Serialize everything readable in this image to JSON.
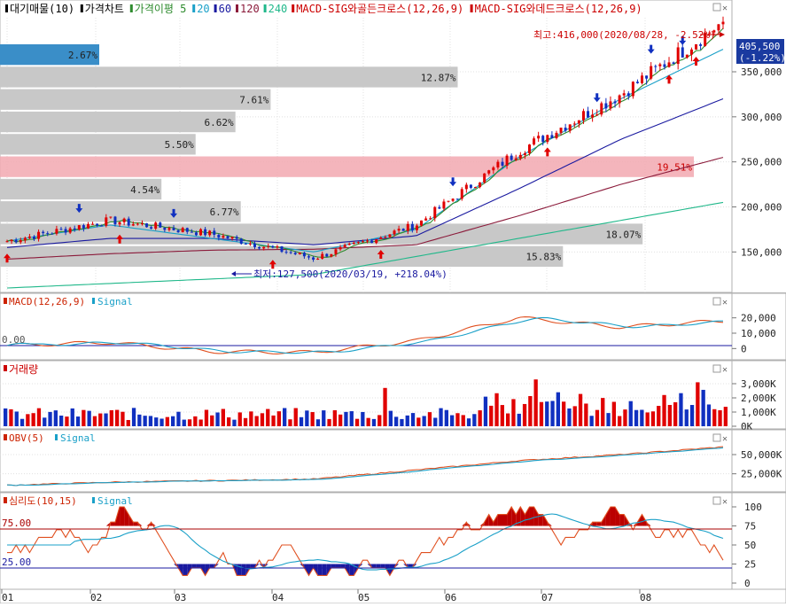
{
  "legend": {
    "items": [
      {
        "label": "대기매물(10)",
        "color": "#000000"
      },
      {
        "label": "가격차트",
        "color": "#000000"
      },
      {
        "label": "가격이평 5",
        "color": "#2e8b2e"
      },
      {
        "label": "20",
        "color": "#1aa0c8"
      },
      {
        "label": "60",
        "color": "#1a1aa0"
      },
      {
        "label": "120",
        "color": "#8b1a3a"
      },
      {
        "label": "240",
        "color": "#20b88a"
      },
      {
        "label": "MACD-SIG와골든크로스(12,26,9)",
        "color": "#cc0000"
      },
      {
        "label": "MACD-SIG와데드크로스(12,26,9)",
        "color": "#cc0000"
      }
    ]
  },
  "price_panel": {
    "max_label": "최고:416,000(2020/08/28, -2.52%)",
    "min_label": "최저:127,500(2020/03/19, +218.04%)",
    "current_price": "405,500",
    "current_change": "(-1.22%)",
    "y_ticks": [
      "350,000",
      "300,000",
      "250,000",
      "200,000",
      "150,000"
    ]
  },
  "volume_profile": [
    {
      "pct": "2.67%",
      "highlight": "blue"
    },
    {
      "pct": "12.87%",
      "highlight": "none"
    },
    {
      "pct": "7.61%",
      "highlight": "none"
    },
    {
      "pct": "6.62%",
      "highlight": "none"
    },
    {
      "pct": "5.50%",
      "highlight": "none"
    },
    {
      "pct": "19.51%",
      "highlight": "red"
    },
    {
      "pct": "4.54%",
      "highlight": "none"
    },
    {
      "pct": "6.77%",
      "highlight": "none"
    },
    {
      "pct": "18.07%",
      "highlight": "none"
    },
    {
      "pct": "15.83%",
      "highlight": "none"
    }
  ],
  "macd_panel": {
    "title_a": "MACD(12,26,9)",
    "title_b": "Signal",
    "zero_label": "0.00",
    "y_ticks": [
      "20,000",
      "10,000",
      "0"
    ]
  },
  "volume_panel": {
    "title": "거래량",
    "y_ticks": [
      "3,000K",
      "2,000K",
      "1,000K",
      "0K"
    ]
  },
  "obv_panel": {
    "title_a": "OBV(5)",
    "title_b": "Signal",
    "y_ticks": [
      "50,000K",
      "25,000K"
    ]
  },
  "psych_panel": {
    "title_a": "심리도(10,15)",
    "title_b": "Signal",
    "upper_label": "75.00",
    "lower_label": "25.00",
    "y_ticks": [
      "100",
      "75",
      "50",
      "25",
      "0"
    ]
  },
  "x_axis": {
    "labels": [
      "01",
      "02",
      "03",
      "04",
      "05",
      "06",
      "07",
      "08"
    ]
  },
  "chart_data": {
    "type": "line",
    "x": [
      "2020/01",
      "2020/02",
      "2020/03",
      "2020/04",
      "2020/05",
      "2020/06",
      "2020/07",
      "2020/08"
    ],
    "close": [
      162000,
      185000,
      170000,
      143000,
      180000,
      262000,
      325000,
      405500
    ],
    "ma20": [
      162000,
      180000,
      165000,
      150000,
      175000,
      255000,
      320000,
      375000
    ],
    "ma60": [
      155000,
      165000,
      165000,
      158000,
      168000,
      220000,
      275000,
      320000
    ],
    "ma120": [
      142000,
      148000,
      152000,
      153000,
      158000,
      190000,
      225000,
      255000
    ],
    "ma240": [
      110000,
      115000,
      120000,
      125000,
      145000,
      165000,
      185000,
      205000
    ],
    "volume_profile_pct": [
      2.67,
      12.87,
      7.61,
      6.62,
      5.5,
      19.51,
      4.54,
      6.77,
      18.07,
      15.83
    ],
    "price_max": 416000,
    "price_min": 127500,
    "ylim": [
      110000,
      410000
    ],
    "macd_ylim": [
      -5000,
      25000
    ],
    "volume_ylim": [
      0,
      3500
    ],
    "psych_ylim": [
      0,
      100
    ]
  }
}
